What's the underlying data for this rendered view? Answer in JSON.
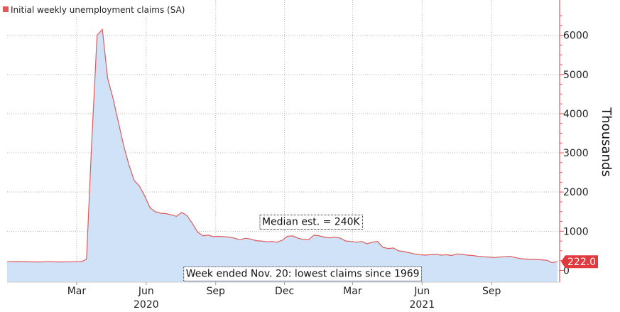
{
  "chart_data": {
    "type": "area",
    "legend": "Initial weekly unemployment claims (SA)",
    "legend_position": "top-left",
    "ylabel": "Thousands",
    "ylim": [
      -300,
      6900
    ],
    "yticks": [
      0,
      1000,
      2000,
      3000,
      4000,
      5000,
      6000
    ],
    "grid": true,
    "x_month_ticks": [
      {
        "label": "Mar",
        "date": "2020-03-01"
      },
      {
        "label": "Jun",
        "date": "2020-06-01"
      },
      {
        "label": "Sep",
        "date": "2020-09-01"
      },
      {
        "label": "Dec",
        "date": "2020-12-01"
      },
      {
        "label": "Mar",
        "date": "2021-03-01"
      },
      {
        "label": "Jun",
        "date": "2021-06-01"
      },
      {
        "label": "Sep",
        "date": "2021-09-01"
      }
    ],
    "x_year_labels": [
      {
        "label": "2020",
        "date": "2020-06-01"
      },
      {
        "label": "2021",
        "date": "2021-06-01"
      }
    ],
    "xlim": [
      "2019-11-30",
      "2021-11-30"
    ],
    "series": [
      {
        "name": "Initial weekly unemployment claims (SA)",
        "color": "#e05a5a",
        "fill": "#cfe2f7",
        "points": [
          [
            "2019-11-30",
            220
          ],
          [
            "2019-12-14",
            225
          ],
          [
            "2019-12-28",
            218
          ],
          [
            "2020-01-11",
            215
          ],
          [
            "2020-01-25",
            222
          ],
          [
            "2020-02-08",
            215
          ],
          [
            "2020-02-22",
            220
          ],
          [
            "2020-03-07",
            225
          ],
          [
            "2020-03-14",
            280
          ],
          [
            "2020-03-21",
            3300
          ],
          [
            "2020-03-28",
            6000
          ],
          [
            "2020-04-04",
            6150
          ],
          [
            "2020-04-11",
            4900
          ],
          [
            "2020-04-18",
            4400
          ],
          [
            "2020-04-25",
            3800
          ],
          [
            "2020-05-02",
            3200
          ],
          [
            "2020-05-09",
            2700
          ],
          [
            "2020-05-16",
            2300
          ],
          [
            "2020-05-23",
            2150
          ],
          [
            "2020-05-30",
            1900
          ],
          [
            "2020-06-06",
            1600
          ],
          [
            "2020-06-13",
            1500
          ],
          [
            "2020-06-20",
            1460
          ],
          [
            "2020-06-27",
            1450
          ],
          [
            "2020-07-04",
            1420
          ],
          [
            "2020-07-11",
            1380
          ],
          [
            "2020-07-18",
            1480
          ],
          [
            "2020-07-25",
            1400
          ],
          [
            "2020-08-01",
            1200
          ],
          [
            "2020-08-08",
            980
          ],
          [
            "2020-08-15",
            880
          ],
          [
            "2020-08-22",
            900
          ],
          [
            "2020-08-29",
            860
          ],
          [
            "2020-09-05",
            870
          ],
          [
            "2020-09-12",
            860
          ],
          [
            "2020-09-19",
            850
          ],
          [
            "2020-09-26",
            820
          ],
          [
            "2020-10-03",
            780
          ],
          [
            "2020-10-10",
            820
          ],
          [
            "2020-10-17",
            800
          ],
          [
            "2020-10-24",
            760
          ],
          [
            "2020-10-31",
            750
          ],
          [
            "2020-11-07",
            730
          ],
          [
            "2020-11-14",
            740
          ],
          [
            "2020-11-21",
            720
          ],
          [
            "2020-11-28",
            770
          ],
          [
            "2020-12-05",
            870
          ],
          [
            "2020-12-12",
            880
          ],
          [
            "2020-12-19",
            820
          ],
          [
            "2020-12-26",
            790
          ],
          [
            "2021-01-02",
            780
          ],
          [
            "2021-01-09",
            900
          ],
          [
            "2021-01-16",
            880
          ],
          [
            "2021-01-23",
            850
          ],
          [
            "2021-01-30",
            830
          ],
          [
            "2021-02-06",
            850
          ],
          [
            "2021-02-13",
            820
          ],
          [
            "2021-02-20",
            750
          ],
          [
            "2021-02-27",
            740
          ],
          [
            "2021-03-06",
            720
          ],
          [
            "2021-03-13",
            740
          ],
          [
            "2021-03-20",
            680
          ],
          [
            "2021-03-27",
            720
          ],
          [
            "2021-04-03",
            740
          ],
          [
            "2021-04-10",
            590
          ],
          [
            "2021-04-17",
            560
          ],
          [
            "2021-04-24",
            570
          ],
          [
            "2021-05-01",
            500
          ],
          [
            "2021-05-08",
            480
          ],
          [
            "2021-05-15",
            450
          ],
          [
            "2021-05-22",
            420
          ],
          [
            "2021-05-29",
            400
          ],
          [
            "2021-06-05",
            390
          ],
          [
            "2021-06-12",
            400
          ],
          [
            "2021-06-19",
            410
          ],
          [
            "2021-06-26",
            390
          ],
          [
            "2021-07-03",
            400
          ],
          [
            "2021-07-10",
            380
          ],
          [
            "2021-07-17",
            420
          ],
          [
            "2021-07-24",
            410
          ],
          [
            "2021-07-31",
            390
          ],
          [
            "2021-08-07",
            380
          ],
          [
            "2021-08-14",
            360
          ],
          [
            "2021-08-21",
            350
          ],
          [
            "2021-08-28",
            340
          ],
          [
            "2021-09-04",
            330
          ],
          [
            "2021-09-11",
            340
          ],
          [
            "2021-09-18",
            350
          ],
          [
            "2021-09-25",
            360
          ],
          [
            "2021-10-02",
            330
          ],
          [
            "2021-10-09",
            300
          ],
          [
            "2021-10-16",
            290
          ],
          [
            "2021-10-23",
            280
          ],
          [
            "2021-10-30",
            280
          ],
          [
            "2021-11-06",
            270
          ],
          [
            "2021-11-13",
            260
          ],
          [
            "2021-11-20",
            199
          ],
          [
            "2021-11-27",
            222
          ]
        ]
      }
    ],
    "last_value_label": "222.0",
    "last_value_color": "#e0393e",
    "annotations": [
      {
        "text": "Median est. = 240K",
        "date": "2021-01-05",
        "value": 1250
      },
      {
        "text": "Week ended Nov. 20: lowest claims since 1969",
        "date": "2020-12-25",
        "value": -70
      }
    ]
  }
}
